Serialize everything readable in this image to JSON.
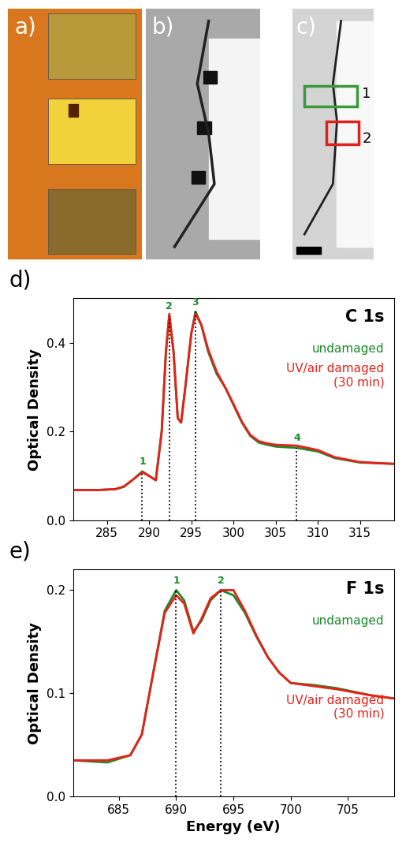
{
  "images": {
    "labels": [
      "a)",
      "b)",
      "c)"
    ],
    "region_labels": [
      "1",
      "2"
    ]
  },
  "chart_data": [
    {
      "type": "line",
      "panel_label": "d)",
      "annotation": "C 1s",
      "ylabel": "Optical Density",
      "xlim": [
        281,
        319
      ],
      "xticks": [
        285,
        290,
        295,
        300,
        305,
        310,
        315
      ],
      "ylim": [
        0.0,
        0.5
      ],
      "yticks": [
        0.0,
        0.2,
        0.4
      ],
      "peaks": [
        {
          "label": "1",
          "x": 289.2
        },
        {
          "label": "2",
          "x": 292.4
        },
        {
          "label": "3",
          "x": 295.5
        },
        {
          "label": "4",
          "x": 307.5
        }
      ],
      "x": [
        281,
        284,
        286,
        287,
        288,
        289.2,
        290,
        290.8,
        291.5,
        292,
        292.4,
        292.9,
        293.4,
        293.8,
        294.3,
        295,
        295.5,
        296.2,
        297,
        298,
        299,
        300,
        301,
        302,
        303,
        304,
        305,
        307.5,
        310,
        312,
        315,
        319
      ],
      "series": [
        {
          "name": "undamaged",
          "color": "#1a8a2a",
          "values": [
            0.068,
            0.068,
            0.07,
            0.075,
            0.09,
            0.11,
            0.1,
            0.09,
            0.2,
            0.38,
            0.46,
            0.38,
            0.23,
            0.22,
            0.3,
            0.42,
            0.47,
            0.44,
            0.38,
            0.33,
            0.3,
            0.26,
            0.22,
            0.19,
            0.175,
            0.17,
            0.166,
            0.163,
            0.155,
            0.14,
            0.13,
            0.127
          ]
        },
        {
          "name": "UV/air damaged\n(30 min)",
          "color": "#e8201a",
          "values": [
            0.068,
            0.068,
            0.07,
            0.076,
            0.09,
            0.108,
            0.1,
            0.09,
            0.2,
            0.38,
            0.465,
            0.38,
            0.23,
            0.22,
            0.3,
            0.42,
            0.465,
            0.44,
            0.385,
            0.335,
            0.3,
            0.262,
            0.222,
            0.192,
            0.178,
            0.173,
            0.17,
            0.168,
            0.158,
            0.142,
            0.131,
            0.127
          ]
        }
      ]
    },
    {
      "type": "line",
      "panel_label": "e)",
      "annotation": "F 1s",
      "ylabel": "Optical Density",
      "xlabel": "Energy (eV)",
      "xlim": [
        681,
        709
      ],
      "xticks": [
        685,
        690,
        695,
        700,
        705
      ],
      "ylim": [
        0.0,
        0.22
      ],
      "yticks": [
        0.0,
        0.1,
        0.2
      ],
      "peaks": [
        {
          "label": "1",
          "x": 690.0
        },
        {
          "label": "2",
          "x": 693.9
        }
      ],
      "x": [
        681,
        684,
        686,
        687,
        688,
        689,
        690,
        690.7,
        691.5,
        692.2,
        693,
        693.9,
        695,
        696,
        697,
        698,
        699,
        700,
        702,
        704,
        707,
        709
      ],
      "series": [
        {
          "name": "undamaged",
          "color": "#1a8a2a",
          "values": [
            0.035,
            0.033,
            0.04,
            0.06,
            0.12,
            0.18,
            0.2,
            0.19,
            0.16,
            0.17,
            0.19,
            0.2,
            0.195,
            0.178,
            0.155,
            0.135,
            0.12,
            0.11,
            0.108,
            0.105,
            0.098,
            0.095
          ]
        },
        {
          "name": "UV/air damaged\n(30 min)",
          "color": "#e8201a",
          "values": [
            0.035,
            0.035,
            0.04,
            0.06,
            0.12,
            0.178,
            0.195,
            0.187,
            0.158,
            0.172,
            0.192,
            0.2,
            0.2,
            0.18,
            0.156,
            0.135,
            0.12,
            0.11,
            0.107,
            0.104,
            0.098,
            0.095
          ]
        }
      ]
    }
  ]
}
